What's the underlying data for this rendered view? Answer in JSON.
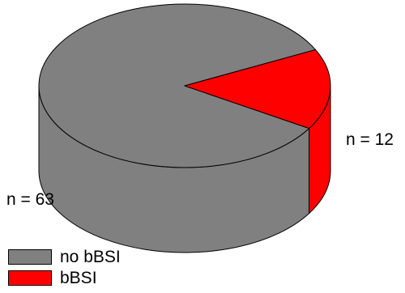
{
  "chart_data": {
    "type": "pie",
    "style": "3d",
    "slices": [
      {
        "label": "no bBSI",
        "value": 63,
        "value_label": "n = 63",
        "color": "#808080"
      },
      {
        "label": "bBSI",
        "value": 12,
        "value_label": "n = 12",
        "color": "#ff0000"
      }
    ],
    "legend": {
      "position": "bottom-left",
      "entries": [
        {
          "label": "no bBSI",
          "color": "#808080"
        },
        {
          "label": "bBSI",
          "color": "#ff0000"
        }
      ]
    }
  }
}
